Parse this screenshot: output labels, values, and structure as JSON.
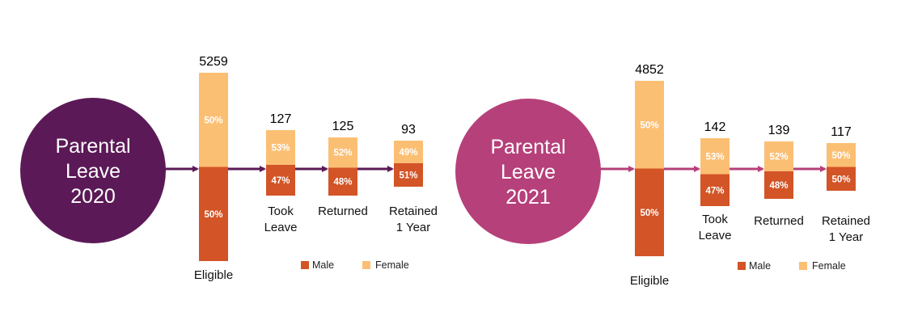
{
  "colors": {
    "male": "#d35426",
    "female": "#fbbf74",
    "panel_2020": "#5b1a57",
    "panel_2021": "#b6407a",
    "arrow_2020": "#5b1a57",
    "arrow_2021": "#b6407a"
  },
  "legend": {
    "male": "Male",
    "female": "Female"
  },
  "chart_data": [
    {
      "type": "bar",
      "title": "Parental Leave 2020",
      "title_lines": [
        "Parental",
        "Leave",
        "2020"
      ],
      "categories": [
        [
          "Eligible"
        ],
        [
          "Took",
          "Leave"
        ],
        [
          "Returned"
        ],
        [
          "Retained",
          "1 Year"
        ]
      ],
      "totals": [
        5259,
        127,
        125,
        93
      ],
      "series": [
        {
          "name": "Male",
          "values": [
            50,
            47,
            48,
            51
          ],
          "labels": [
            "50%",
            "47%",
            "48%",
            "51%"
          ]
        },
        {
          "name": "Female",
          "values": [
            50,
            53,
            52,
            49
          ],
          "labels": [
            "50%",
            "53%",
            "52%",
            "49%"
          ]
        }
      ],
      "legend_position": "bottom-right"
    },
    {
      "type": "bar",
      "title": "Parental Leave 2021",
      "title_lines": [
        "Parental",
        "Leave",
        "2021"
      ],
      "categories": [
        [
          "Eligible"
        ],
        [
          "Took",
          "Leave"
        ],
        [
          "Returned"
        ],
        [
          "Retained",
          "1 Year"
        ]
      ],
      "totals": [
        4852,
        142,
        139,
        117
      ],
      "series": [
        {
          "name": "Male",
          "values": [
            50,
            47,
            48,
            50
          ],
          "labels": [
            "50%",
            "47%",
            "48%",
            "50%"
          ]
        },
        {
          "name": "Female",
          "values": [
            50,
            53,
            52,
            50
          ],
          "labels": [
            "50%",
            "53%",
            "52%",
            "50%"
          ]
        }
      ],
      "legend_position": "bottom-right"
    }
  ]
}
